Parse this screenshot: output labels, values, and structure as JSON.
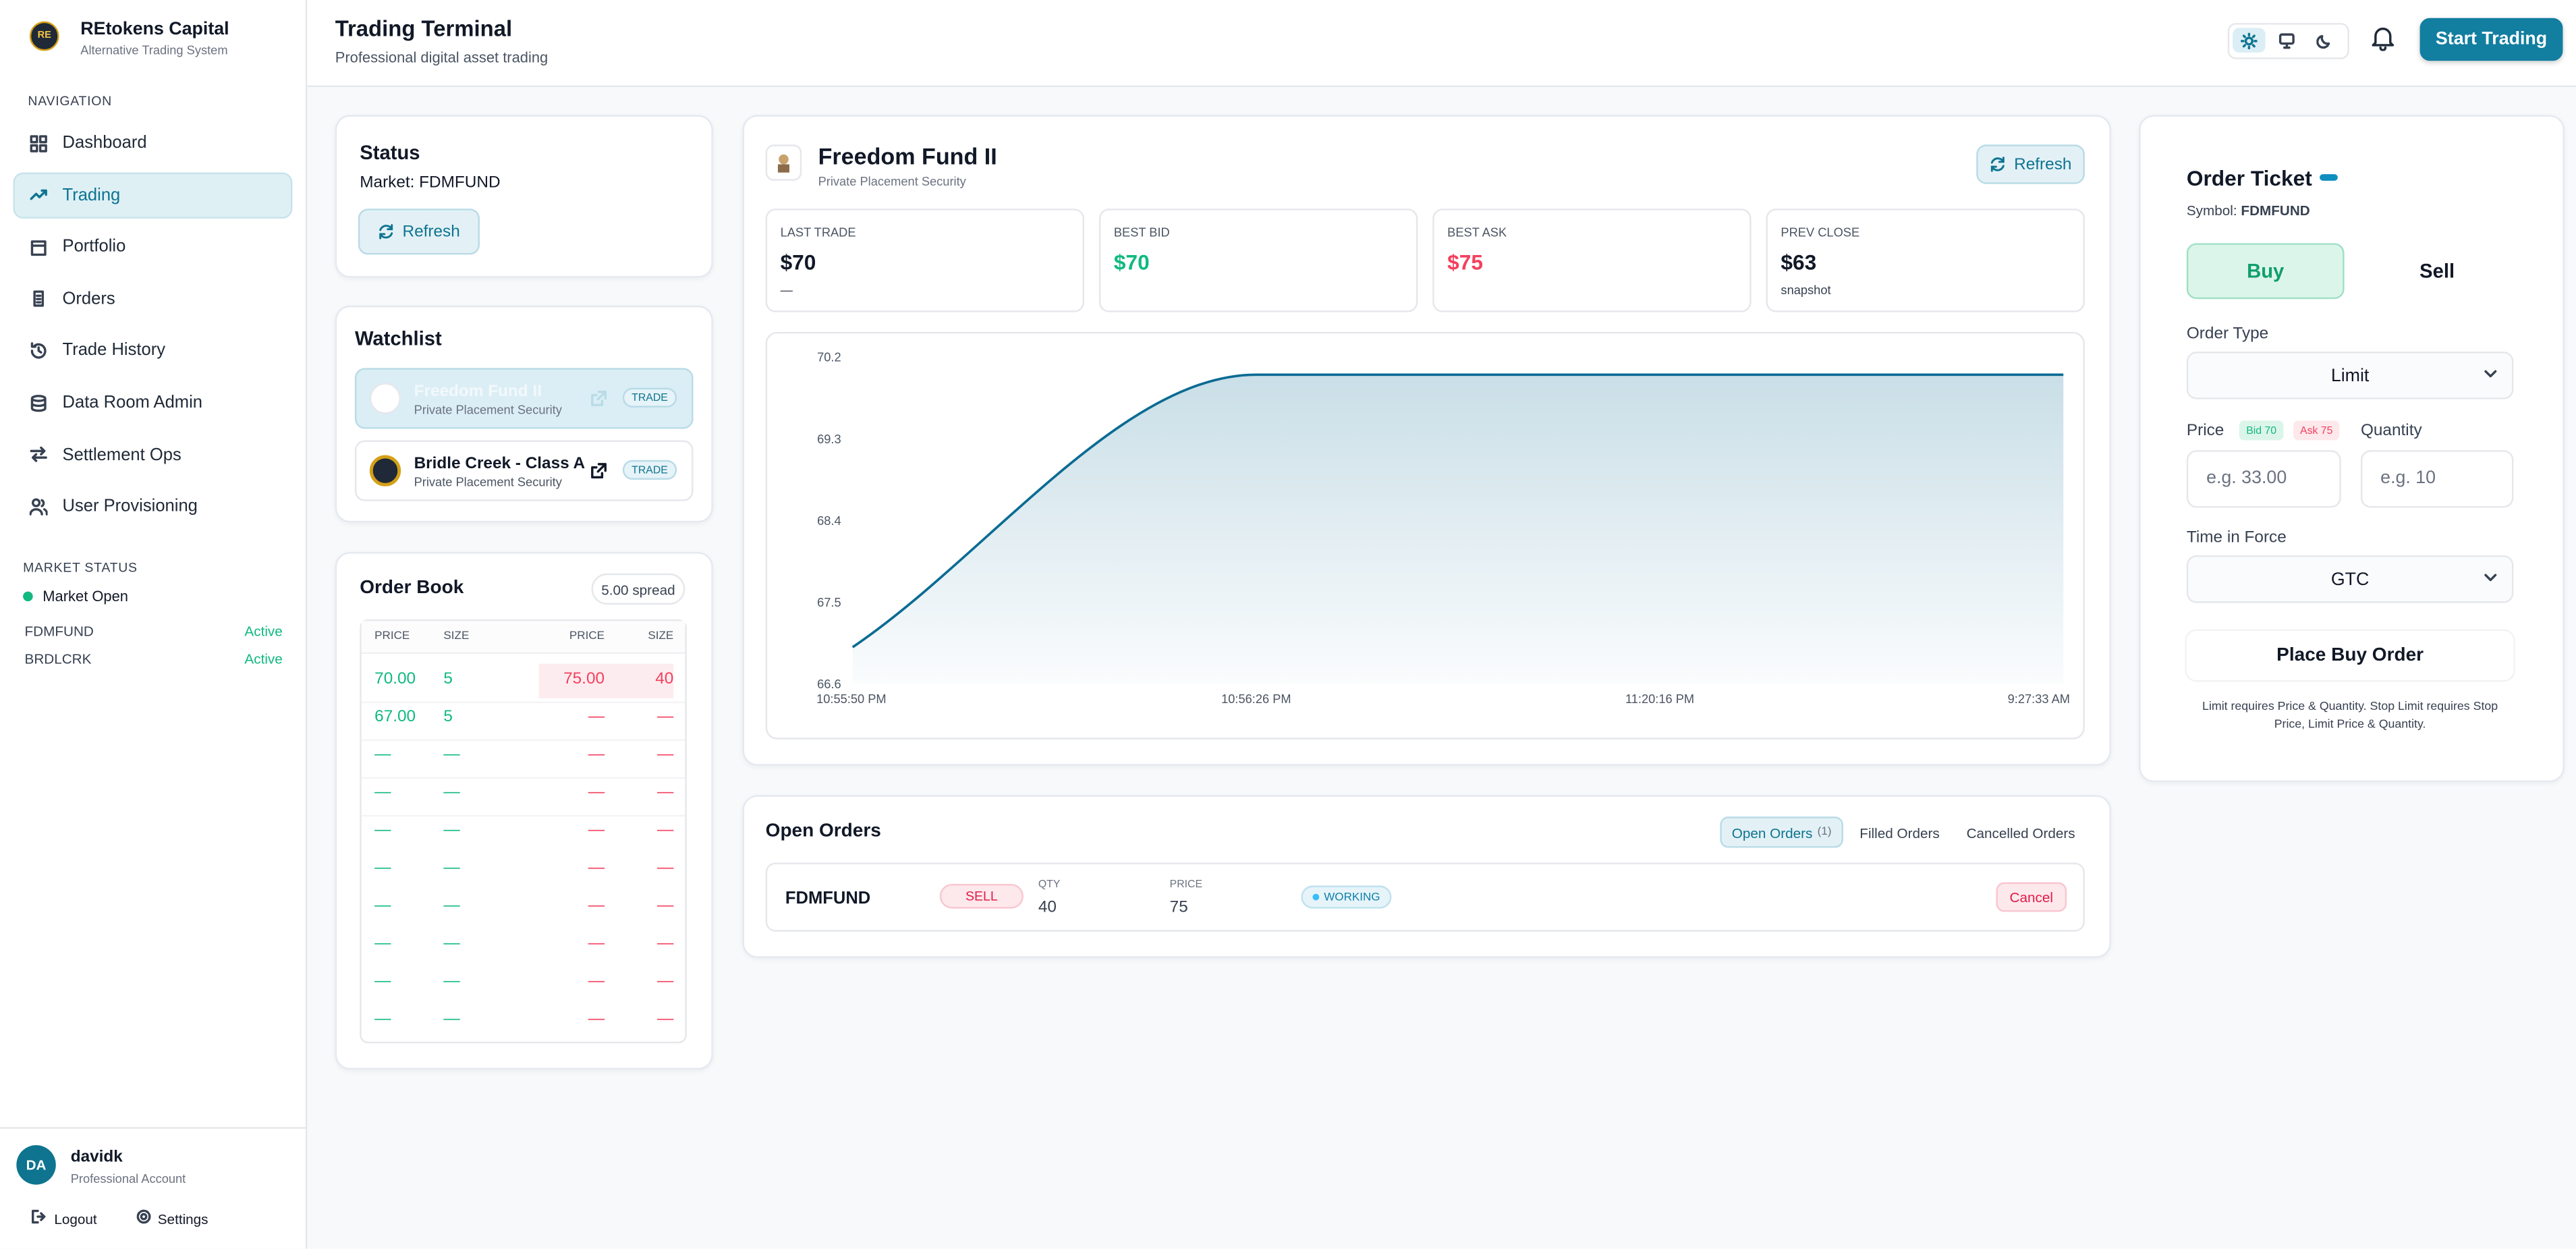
{
  "sidebar": {
    "brand": {
      "logo": "RE",
      "name": "REtokens Capital",
      "tagline": "Alternative Trading System"
    },
    "nav_heading": "NAVIGATION",
    "nav": [
      "Dashboard",
      "Trading",
      "Portfolio",
      "Orders",
      "Trade History",
      "Data Room Admin",
      "Settlement Ops",
      "User Provisioning"
    ],
    "market_status": {
      "heading": "MARKET STATUS",
      "state": "Market Open",
      "symbols": [
        {
          "symbol": "FDMFUND",
          "status": "Active"
        },
        {
          "symbol": "BRDLCRK",
          "status": "Active"
        }
      ]
    },
    "user": {
      "initials": "DA",
      "name": "davidk",
      "role": "Professional Account"
    },
    "logout": "Logout",
    "settings": "Settings"
  },
  "header": {
    "title": "Trading Terminal",
    "subtitle": "Professional digital asset trading",
    "button": "Start Trading"
  },
  "status": {
    "title": "Status",
    "market": "Market: FDMFUND",
    "refresh": "Refresh"
  },
  "watchlist": {
    "title": "Watchlist",
    "items": [
      {
        "name": "Freedom Fund II",
        "type": "Private Placement Security",
        "action": "TRADE"
      },
      {
        "name": "Bridle Creek - Class A",
        "type": "Private Placement Security",
        "action": "TRADE"
      }
    ]
  },
  "order_book": {
    "title": "Order Book",
    "spread": "5.00 spread",
    "columns": [
      "PRICE",
      "SIZE",
      "PRICE",
      "SIZE"
    ],
    "rows": [
      [
        "70.00",
        "5",
        "75.00",
        "40"
      ],
      [
        "67.00",
        "5",
        "—",
        "—"
      ],
      [
        "—",
        "—",
        "—",
        "—"
      ],
      [
        "—",
        "—",
        "—",
        "—"
      ],
      [
        "—",
        "—",
        "—",
        "—"
      ],
      [
        "—",
        "—",
        "—",
        "—"
      ],
      [
        "—",
        "—",
        "—",
        "—"
      ],
      [
        "—",
        "—",
        "—",
        "—"
      ],
      [
        "—",
        "—",
        "—",
        "—"
      ],
      [
        "—",
        "—",
        "—",
        "—"
      ]
    ]
  },
  "security": {
    "name": "Freedom Fund II",
    "type": "Private Placement Security",
    "refresh": "Refresh",
    "stats": [
      {
        "label": "LAST TRADE",
        "value": "$70",
        "sub": "—"
      },
      {
        "label": "BEST BID",
        "value": "$70"
      },
      {
        "label": "BEST ASK",
        "value": "$75"
      },
      {
        "label": "PREV CLOSE",
        "value": "$63",
        "sub": "snapshot"
      }
    ]
  },
  "chart": {
    "type": "line",
    "categories": [
      "10:55:50 PM",
      "10:56:26 PM",
      "11:20:16 PM",
      "9:27:33 AM"
    ],
    "values": [
      67.0,
      70,
      70,
      70
    ],
    "color": "#0b6b93",
    "ylim": [
      66.6,
      70.2
    ],
    "yticks": [
      70.2,
      69.3,
      68.4,
      67.5,
      66.6
    ]
  },
  "open_orders": {
    "title": "Open Orders",
    "tabs": [
      {
        "label": "Open Orders",
        "count": "(1)"
      },
      {
        "label": "Filled Orders"
      },
      {
        "label": "Cancelled Orders"
      }
    ],
    "order": {
      "symbol": "FDMFUND",
      "side": "SELL",
      "qty_label": "QTY",
      "qty": "40",
      "price_label": "PRICE",
      "price": "75",
      "status": "WORKING",
      "action": "Cancel"
    }
  },
  "ticket": {
    "title": "Order Ticket",
    "symbol_label": "Symbol:",
    "symbol": "FDMFUND",
    "buy": "Buy",
    "sell": "Sell",
    "order_type_label": "Order Type",
    "order_type": "Limit",
    "price_label": "Price",
    "bid_badge": "Bid 70",
    "ask_badge": "Ask 75",
    "quantity_label": "Quantity",
    "price_placeholder": "e.g. 33.00",
    "qty_placeholder": "e.g. 10",
    "tif_label": "Time in Force",
    "tif": "GTC",
    "submit": "Place Buy Order",
    "note": "Limit requires Price & Quantity. Stop Limit requires Stop Price, Limit Price & Quantity."
  }
}
